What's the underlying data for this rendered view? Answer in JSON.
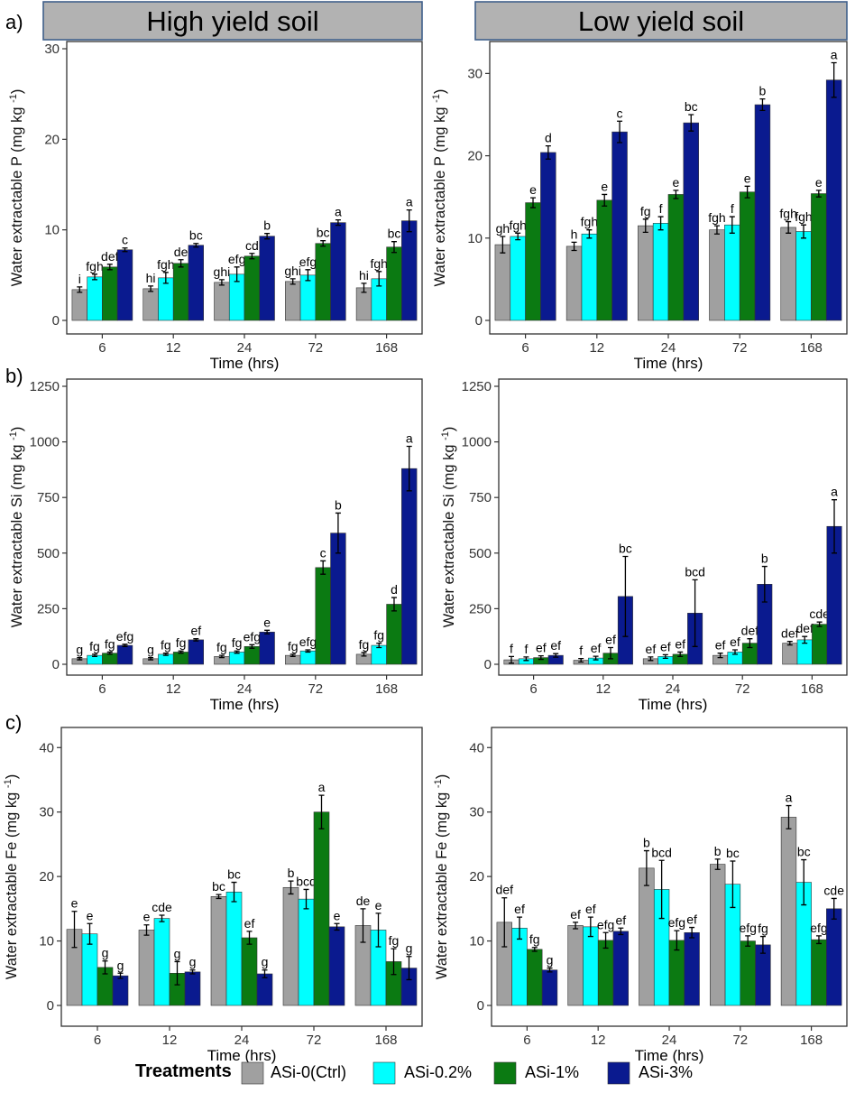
{
  "colors": {
    "ASi-0(Ctrl)": "#a0a0a0",
    "ASi-0.2%": "#00ffff",
    "ASi-1%": "#0b7a12",
    "ASi-3%": "#0a1a8f"
  },
  "strips": {
    "left": "High yield soil",
    "right": "Low yield soil"
  },
  "panel_labels": [
    "a)",
    "b)",
    "c)"
  ],
  "legend": {
    "title": "Treatments",
    "items": [
      "ASi-0(Ctrl)",
      "ASi-0.2%",
      "ASi-1%",
      "ASi-3%"
    ]
  },
  "chart_data": [
    {
      "id": "a_high",
      "type": "bar",
      "panel": "a)",
      "facet": "High yield soil",
      "xlabel": "Time (hrs)",
      "ylabel": "Water extractable P",
      "ylabel_unit_base": "(mg kg",
      "ylabel_unit_sup": "-1",
      "ylabel_unit_end": ")",
      "categories": [
        "6",
        "12",
        "24",
        "72",
        "168"
      ],
      "ylim": [
        0,
        30
      ],
      "yticks": [
        0,
        10,
        20,
        30
      ],
      "series": [
        {
          "name": "ASi-0(Ctrl)",
          "values": [
            3.4,
            3.5,
            4.2,
            4.3,
            3.6
          ],
          "errors": [
            0.3,
            0.3,
            0.3,
            0.3,
            0.5
          ],
          "labels": [
            "i",
            "hi",
            "ghi",
            "ghi",
            "hi"
          ]
        },
        {
          "name": "ASi-0.2%",
          "values": [
            4.8,
            4.7,
            5.1,
            5.0,
            4.6
          ],
          "errors": [
            0.3,
            0.6,
            0.8,
            0.6,
            0.8
          ],
          "labels": [
            "fgh",
            "fgh",
            "efg",
            "efg",
            "fgh"
          ]
        },
        {
          "name": "ASi-1%",
          "values": [
            5.9,
            6.3,
            7.1,
            8.5,
            8.1
          ],
          "errors": [
            0.3,
            0.4,
            0.3,
            0.3,
            0.6
          ],
          "labels": [
            "def",
            "de",
            "cd",
            "bc",
            "bc"
          ]
        },
        {
          "name": "ASi-3%",
          "values": [
            7.8,
            8.3,
            9.3,
            10.8,
            11.0
          ],
          "errors": [
            0.2,
            0.2,
            0.3,
            0.3,
            1.2
          ],
          "labels": [
            "c",
            "bc",
            "b",
            "a",
            "a"
          ]
        }
      ]
    },
    {
      "id": "a_low",
      "type": "bar",
      "panel": "a)",
      "facet": "Low yield soil",
      "xlabel": "Time (hrs)",
      "ylabel": "Water extractable P",
      "ylabel_unit_base": "(mg kg",
      "ylabel_unit_sup": "-1",
      "ylabel_unit_end": ")",
      "categories": [
        "6",
        "12",
        "24",
        "72",
        "168"
      ],
      "ylim": [
        0,
        33
      ],
      "yticks": [
        0,
        10,
        20,
        30
      ],
      "series": [
        {
          "name": "ASi-0(Ctrl)",
          "values": [
            9.2,
            9.0,
            11.5,
            11.0,
            11.3
          ],
          "errors": [
            1.0,
            0.5,
            0.8,
            0.5,
            0.7
          ],
          "labels": [
            "gh",
            "h",
            "fg",
            "fgh",
            "fgh"
          ]
        },
        {
          "name": "ASi-0.2%",
          "values": [
            10.2,
            10.5,
            11.8,
            11.6,
            10.8
          ],
          "errors": [
            0.4,
            0.5,
            0.8,
            1.0,
            0.8
          ],
          "labels": [
            "fgh",
            "fgh",
            "f",
            "f",
            "fgh"
          ]
        },
        {
          "name": "ASi-1%",
          "values": [
            14.3,
            14.6,
            15.3,
            15.6,
            15.4
          ],
          "errors": [
            0.6,
            0.7,
            0.5,
            0.7,
            0.4
          ],
          "labels": [
            "e",
            "e",
            "e",
            "e",
            "e"
          ]
        },
        {
          "name": "ASi-3%",
          "values": [
            20.4,
            22.9,
            24.0,
            26.2,
            29.2
          ],
          "errors": [
            0.8,
            1.3,
            1.0,
            0.7,
            2.1
          ],
          "labels": [
            "d",
            "c",
            "bc",
            "b",
            "a"
          ]
        }
      ]
    },
    {
      "id": "b_high",
      "type": "bar",
      "panel": "b)",
      "facet": "High yield soil",
      "xlabel": "Time (hrs)",
      "ylabel": "Water extractable Si",
      "ylabel_unit_base": "(mg kg",
      "ylabel_unit_sup": "-1",
      "ylabel_unit_end": ")",
      "categories": [
        "6",
        "12",
        "24",
        "72",
        "168"
      ],
      "ylim": [
        0,
        1250
      ],
      "yticks": [
        0,
        250,
        500,
        750,
        1000,
        1250
      ],
      "series": [
        {
          "name": "ASi-0(Ctrl)",
          "values": [
            25,
            25,
            35,
            40,
            45
          ],
          "errors": [
            5,
            5,
            5,
            5,
            8
          ],
          "labels": [
            "g",
            "g",
            "fg",
            "fg",
            "fg"
          ]
        },
        {
          "name": "ASi-0.2%",
          "values": [
            40,
            45,
            55,
            60,
            85
          ],
          "errors": [
            5,
            5,
            5,
            5,
            10
          ],
          "labels": [
            "fg",
            "fg",
            "fg",
            "efg",
            "fg"
          ]
        },
        {
          "name": "ASi-1%",
          "values": [
            50,
            55,
            80,
            435,
            270
          ],
          "errors": [
            5,
            5,
            8,
            30,
            30
          ],
          "labels": [
            "fg",
            "fg",
            "efg",
            "c",
            "d"
          ]
        },
        {
          "name": "ASi-3%",
          "values": [
            85,
            110,
            145,
            590,
            880
          ],
          "errors": [
            5,
            5,
            8,
            90,
            100
          ],
          "labels": [
            "efg",
            "ef",
            "e",
            "b",
            "a"
          ]
        }
      ]
    },
    {
      "id": "b_low",
      "type": "bar",
      "panel": "b)",
      "facet": "Low yield soil",
      "xlabel": "Time (hrs)",
      "ylabel": "Water extractable Si",
      "ylabel_unit_base": "(mg kg",
      "ylabel_unit_sup": "-1",
      "ylabel_unit_end": ")",
      "categories": [
        "6",
        "12",
        "24",
        "72",
        "168"
      ],
      "ylim": [
        0,
        1250
      ],
      "yticks": [
        0,
        250,
        500,
        750,
        1000,
        1250
      ],
      "series": [
        {
          "name": "ASi-0(Ctrl)",
          "values": [
            20,
            18,
            25,
            40,
            95
          ],
          "errors": [
            15,
            8,
            8,
            10,
            8
          ],
          "labels": [
            "f",
            "f",
            "ef",
            "ef",
            "def"
          ]
        },
        {
          "name": "ASi-0.2%",
          "values": [
            25,
            28,
            35,
            55,
            110
          ],
          "errors": [
            8,
            8,
            8,
            10,
            15
          ],
          "labels": [
            "f",
            "ef",
            "ef",
            "ef",
            "def"
          ]
        },
        {
          "name": "ASi-1%",
          "values": [
            30,
            50,
            45,
            95,
            180
          ],
          "errors": [
            8,
            25,
            10,
            20,
            10
          ],
          "labels": [
            "ef",
            "ef",
            "ef",
            "def",
            "cde"
          ]
        },
        {
          "name": "ASi-3%",
          "values": [
            40,
            305,
            230,
            360,
            620
          ],
          "errors": [
            8,
            180,
            150,
            80,
            120
          ],
          "labels": [
            "ef",
            "bc",
            "bcd",
            "b",
            "a"
          ]
        }
      ]
    },
    {
      "id": "c_high",
      "type": "bar",
      "panel": "c)",
      "facet": "High yield soil",
      "xlabel": "Time (hrs)",
      "ylabel": "Water extractable Fe",
      "ylabel_unit_base": "(mg kg",
      "ylabel_unit_sup": "-1",
      "ylabel_unit_end": ")",
      "categories": [
        "6",
        "12",
        "24",
        "72",
        "168"
      ],
      "ylim": [
        0,
        42
      ],
      "yticks": [
        0,
        10,
        20,
        30,
        40
      ],
      "series": [
        {
          "name": "ASi-0(Ctrl)",
          "values": [
            11.8,
            11.7,
            16.9,
            18.3,
            12.4
          ],
          "errors": [
            2.8,
            0.8,
            0.3,
            1.0,
            2.6
          ],
          "labels": [
            "e",
            "e",
            "bc",
            "b",
            "de"
          ]
        },
        {
          "name": "ASi-0.2%",
          "values": [
            11.1,
            13.5,
            17.6,
            16.5,
            11.7
          ],
          "errors": [
            1.6,
            0.5,
            1.5,
            1.5,
            2.6
          ],
          "labels": [
            "e",
            "cde",
            "bc",
            "bcd",
            "e"
          ]
        },
        {
          "name": "ASi-1%",
          "values": [
            5.9,
            5.0,
            10.5,
            30.0,
            6.8
          ],
          "errors": [
            1.0,
            1.8,
            1.0,
            2.6,
            2.0
          ],
          "labels": [
            "g",
            "g",
            "ef",
            "a",
            "fg"
          ]
        },
        {
          "name": "ASi-3%",
          "values": [
            4.6,
            5.2,
            4.9,
            12.2,
            5.8
          ],
          "errors": [
            0.4,
            0.3,
            0.6,
            0.5,
            1.8
          ],
          "labels": [
            "g",
            "g",
            "g",
            "e",
            "g"
          ]
        }
      ]
    },
    {
      "id": "c_low",
      "type": "bar",
      "panel": "c)",
      "facet": "Low yield soil",
      "xlabel": "Time (hrs)",
      "ylabel": "Water extractable Fe",
      "ylabel_unit_base": "(mg kg",
      "ylabel_unit_sup": "-1",
      "ylabel_unit_end": ")",
      "categories": [
        "6",
        "12",
        "24",
        "72",
        "168"
      ],
      "ylim": [
        0,
        42
      ],
      "yticks": [
        0,
        10,
        20,
        30,
        40
      ],
      "series": [
        {
          "name": "ASi-0(Ctrl)",
          "values": [
            12.9,
            12.4,
            21.3,
            21.9,
            29.2
          ],
          "errors": [
            3.8,
            0.5,
            2.7,
            0.8,
            1.8
          ],
          "labels": [
            "def",
            "ef",
            "b",
            "b",
            "a"
          ]
        },
        {
          "name": "ASi-0.2%",
          "values": [
            12.0,
            12.2,
            18.0,
            18.8,
            19.1
          ],
          "errors": [
            1.7,
            1.5,
            4.5,
            3.6,
            3.5
          ],
          "labels": [
            "ef",
            "ef",
            "bcd",
            "bc",
            "bc"
          ]
        },
        {
          "name": "ASi-1%",
          "values": [
            8.7,
            10.1,
            10.1,
            10.0,
            10.2
          ],
          "errors": [
            0.3,
            1.2,
            1.5,
            0.8,
            0.6
          ],
          "labels": [
            "fg",
            "efg",
            "efg",
            "efg",
            "efg"
          ]
        },
        {
          "name": "ASi-3%",
          "values": [
            5.5,
            11.5,
            11.3,
            9.4,
            15.0
          ],
          "errors": [
            0.3,
            0.5,
            0.8,
            1.3,
            1.6
          ],
          "labels": [
            "g",
            "ef",
            "ef",
            "fg",
            "cde"
          ]
        }
      ]
    }
  ]
}
